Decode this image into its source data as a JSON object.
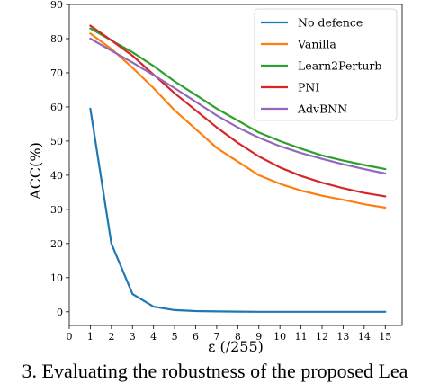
{
  "chart_data": {
    "type": "line",
    "title": "",
    "xlabel": "ε (/255)",
    "ylabel": "ACC(%)",
    "xlim": [
      0,
      15.8
    ],
    "ylim": [
      -4,
      90
    ],
    "xticks": [
      0,
      1,
      2,
      3,
      4,
      5,
      6,
      7,
      8,
      9,
      10,
      11,
      12,
      13,
      14,
      15
    ],
    "yticks": [
      0,
      10,
      20,
      30,
      40,
      50,
      60,
      70,
      80,
      90
    ],
    "grid": false,
    "legend_position": "top-right",
    "x": [
      1,
      2,
      3,
      4,
      5,
      6,
      7,
      8,
      9,
      10,
      11,
      12,
      13,
      14,
      15
    ],
    "series": [
      {
        "name": "No defence",
        "color": "#1f77b4",
        "values": [
          59.5,
          20.0,
          5.2,
          1.5,
          0.5,
          0.2,
          0.1,
          0.05,
          0.0,
          0.0,
          0.0,
          0.0,
          0.0,
          0.0,
          0.0
        ]
      },
      {
        "name": "Vanilla",
        "color": "#ff7f0e",
        "values": [
          81.5,
          77.0,
          71.5,
          65.5,
          59.0,
          53.5,
          48.0,
          44.0,
          40.0,
          37.5,
          35.5,
          34.0,
          32.8,
          31.5,
          30.5
        ]
      },
      {
        "name": "Learn2Perturb",
        "color": "#2ca02c",
        "values": [
          83.0,
          79.5,
          76.0,
          72.0,
          67.5,
          63.5,
          59.5,
          56.0,
          52.5,
          50.0,
          47.8,
          45.8,
          44.3,
          43.0,
          41.8
        ]
      },
      {
        "name": "PNI",
        "color": "#d62728",
        "values": [
          83.8,
          79.5,
          75.0,
          69.5,
          64.0,
          59.0,
          54.0,
          49.5,
          45.5,
          42.3,
          39.8,
          37.8,
          36.2,
          34.8,
          33.8
        ]
      },
      {
        "name": "AdvBNN",
        "color": "#9467bd",
        "values": [
          80.0,
          76.5,
          73.0,
          69.3,
          65.5,
          61.5,
          57.5,
          54.0,
          51.0,
          48.5,
          46.5,
          44.8,
          43.2,
          41.8,
          40.5
        ]
      }
    ]
  },
  "caption": "3. Evaluating the robustness of the proposed Lea"
}
